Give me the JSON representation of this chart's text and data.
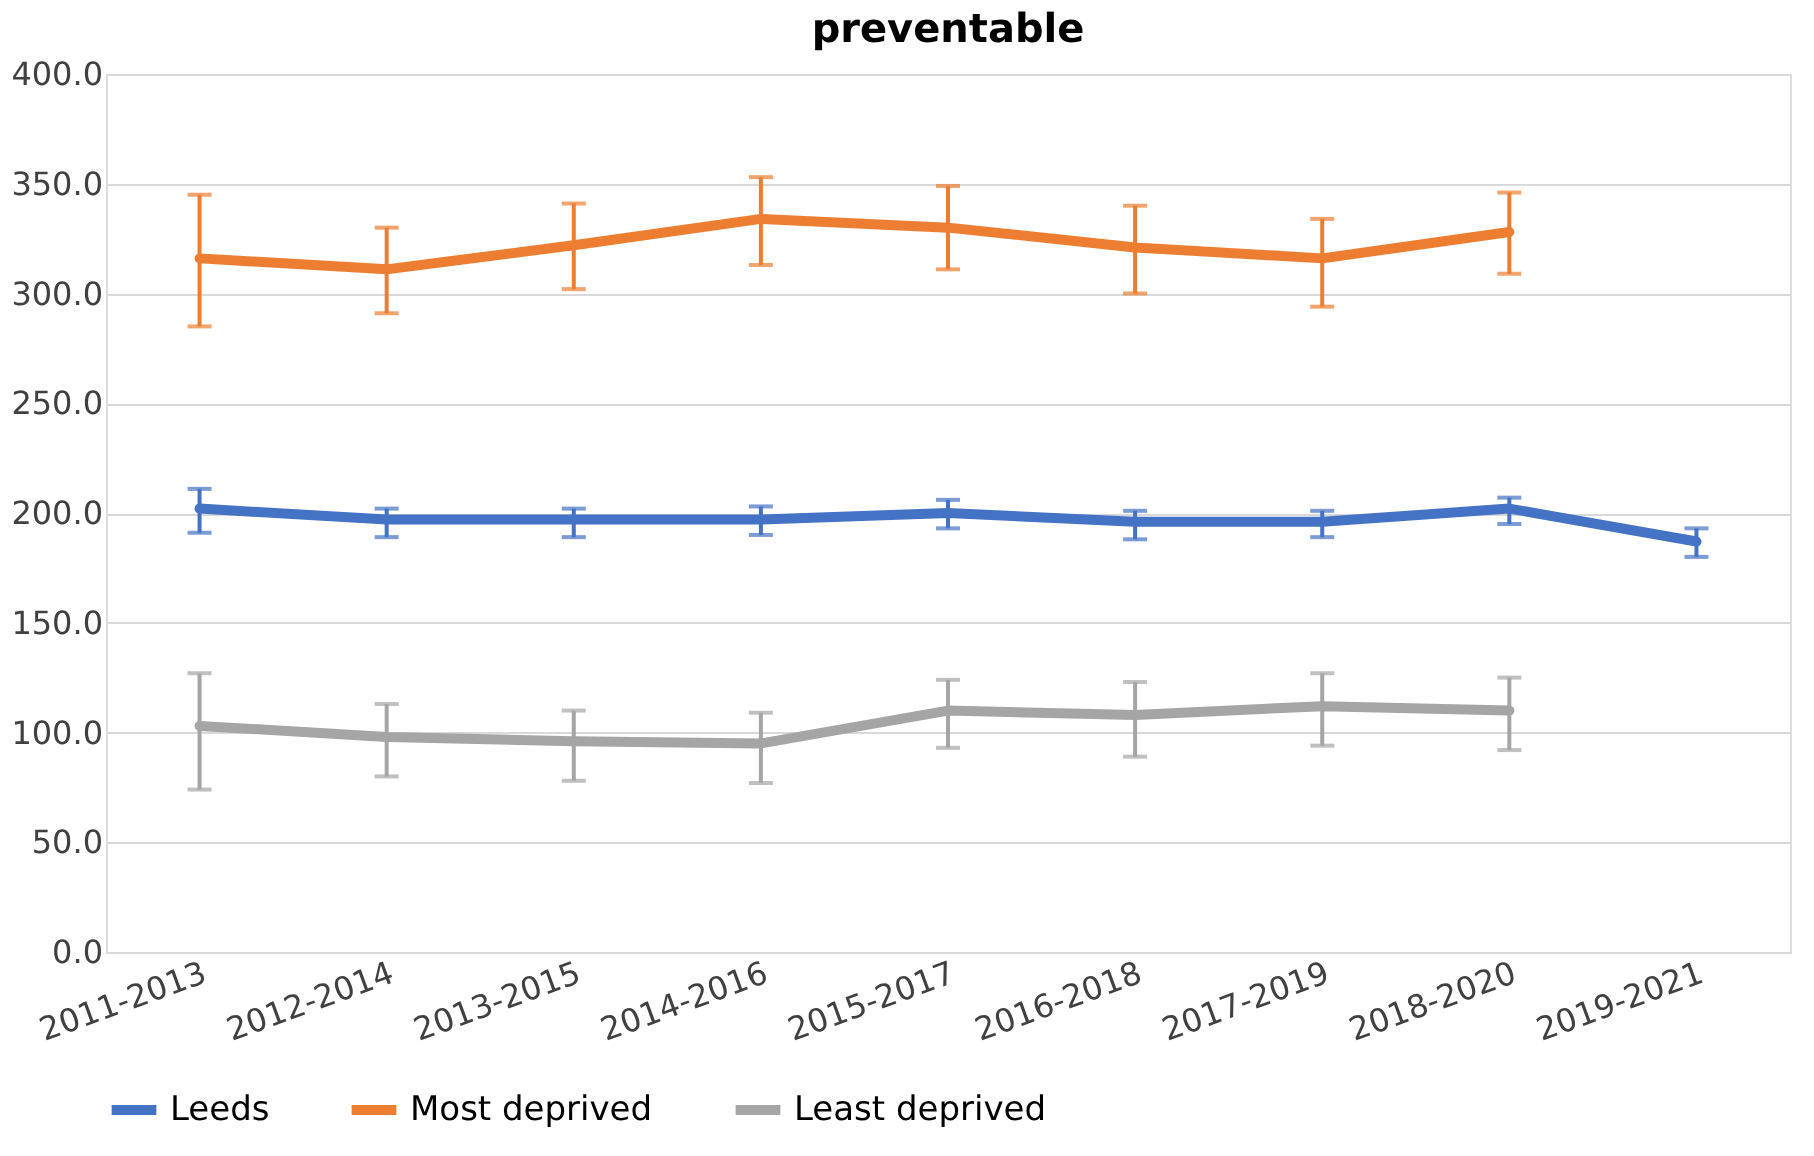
{
  "chart_data": {
    "type": "line",
    "title": "preventable",
    "categories": [
      "2011-2013",
      "2012-2014",
      "2013-2015",
      "2014-2016",
      "2015-2017",
      "2016-2018",
      "2017-2019",
      "2018-2020",
      "2019-2021"
    ],
    "series": [
      {
        "name": "Leeds",
        "color": "#4472c4",
        "values": [
          202,
          197,
          197,
          197,
          200,
          196,
          196,
          202,
          187
        ],
        "errors": [
          [
            191,
            211
          ],
          [
            189,
            202
          ],
          [
            189,
            202
          ],
          [
            190,
            203
          ],
          [
            193,
            206
          ],
          [
            188,
            201
          ],
          [
            189,
            201
          ],
          [
            195,
            207
          ],
          [
            180,
            193
          ]
        ]
      },
      {
        "name": "Most deprived",
        "color": "#ed7d31",
        "values": [
          316,
          311,
          322,
          334,
          330,
          321,
          316,
          328,
          null
        ],
        "errors": [
          [
            285,
            345
          ],
          [
            291,
            330
          ],
          [
            302,
            341
          ],
          [
            313,
            353
          ],
          [
            311,
            349
          ],
          [
            300,
            340
          ],
          [
            294,
            334
          ],
          [
            309,
            346
          ],
          null
        ]
      },
      {
        "name": "Least deprived",
        "color": "#a5a5a5",
        "values": [
          103,
          98,
          96,
          95,
          110,
          108,
          112,
          110,
          null
        ],
        "errors": [
          [
            74,
            127
          ],
          [
            80,
            113
          ],
          [
            78,
            110
          ],
          [
            77,
            109
          ],
          [
            93,
            124
          ],
          [
            89,
            123
          ],
          [
            94,
            127
          ],
          [
            92,
            125
          ],
          null
        ]
      }
    ],
    "ylim": [
      0,
      400
    ],
    "yticks": [
      {
        "value": 0,
        "label": "0.0"
      },
      {
        "value": 50,
        "label": "50.0"
      },
      {
        "value": 100,
        "label": "100.0"
      },
      {
        "value": 150,
        "label": "150.0"
      },
      {
        "value": 200,
        "label": "200.0"
      },
      {
        "value": 250,
        "label": "250.0"
      },
      {
        "value": 300,
        "label": "300.0"
      },
      {
        "value": 350,
        "label": "350.0"
      },
      {
        "value": 400,
        "label": "400.0"
      }
    ],
    "grid": "y",
    "legend": "bottom",
    "marker": "none",
    "line_style": "solid"
  }
}
